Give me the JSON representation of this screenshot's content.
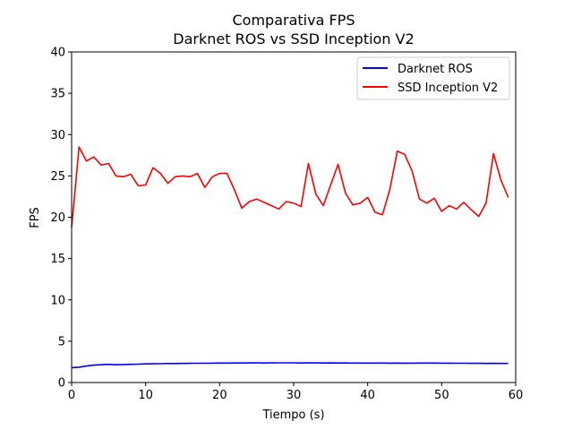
{
  "chart_data": {
    "type": "line",
    "title": "Comparativa FPS",
    "subtitle": "Darknet ROS vs SSD Inception V2",
    "xlabel": "Tiempo (s)",
    "ylabel": "FPS",
    "xlim": [
      0,
      60
    ],
    "ylim": [
      0,
      40
    ],
    "xticks": [
      0,
      10,
      20,
      30,
      40,
      50,
      60
    ],
    "yticks": [
      0,
      5,
      10,
      15,
      20,
      25,
      30,
      35,
      40
    ],
    "grid": false,
    "legend_position": "top-right",
    "x": [
      0,
      1,
      2,
      3,
      4,
      5,
      6,
      7,
      8,
      9,
      10,
      11,
      12,
      13,
      14,
      15,
      16,
      17,
      18,
      19,
      20,
      21,
      22,
      23,
      24,
      25,
      26,
      27,
      28,
      29,
      30,
      31,
      32,
      33,
      34,
      35,
      36,
      37,
      38,
      39,
      40,
      41,
      42,
      43,
      44,
      45,
      46,
      47,
      48,
      49,
      50,
      51,
      52,
      53,
      54,
      55,
      56,
      57,
      58,
      59
    ],
    "series": [
      {
        "name": "Darknet ROS",
        "color": "#0000ff",
        "values": [
          1.8,
          1.85,
          2.0,
          2.1,
          2.15,
          2.2,
          2.15,
          2.18,
          2.2,
          2.22,
          2.25,
          2.27,
          2.28,
          2.3,
          2.3,
          2.31,
          2.32,
          2.33,
          2.33,
          2.34,
          2.35,
          2.35,
          2.36,
          2.36,
          2.37,
          2.38,
          2.36,
          2.37,
          2.38,
          2.38,
          2.39,
          2.36,
          2.37,
          2.37,
          2.36,
          2.37,
          2.36,
          2.36,
          2.35,
          2.35,
          2.35,
          2.35,
          2.35,
          2.34,
          2.35,
          2.34,
          2.34,
          2.35,
          2.35,
          2.35,
          2.34,
          2.34,
          2.33,
          2.33,
          2.32,
          2.32,
          2.31,
          2.32,
          2.31,
          2.31
        ]
      },
      {
        "name": "SSD Inception V2",
        "color": "#ff0000",
        "values": [
          18.8,
          28.5,
          26.8,
          27.3,
          26.3,
          26.5,
          25.0,
          24.9,
          25.2,
          23.8,
          23.9,
          26.0,
          25.3,
          24.1,
          24.9,
          25.0,
          24.9,
          25.3,
          23.6,
          24.9,
          25.3,
          25.3,
          23.3,
          21.1,
          21.9,
          22.2,
          21.8,
          21.4,
          21.0,
          21.9,
          21.7,
          21.3,
          26.5,
          22.8,
          21.4,
          23.9,
          26.4,
          22.9,
          21.5,
          21.7,
          22.4,
          20.6,
          20.3,
          23.4,
          28.0,
          27.6,
          25.6,
          22.2,
          21.7,
          22.3,
          20.7,
          21.4,
          21.0,
          21.8,
          20.9,
          20.1,
          21.7,
          27.7,
          24.5,
          22.4
        ]
      }
    ]
  }
}
